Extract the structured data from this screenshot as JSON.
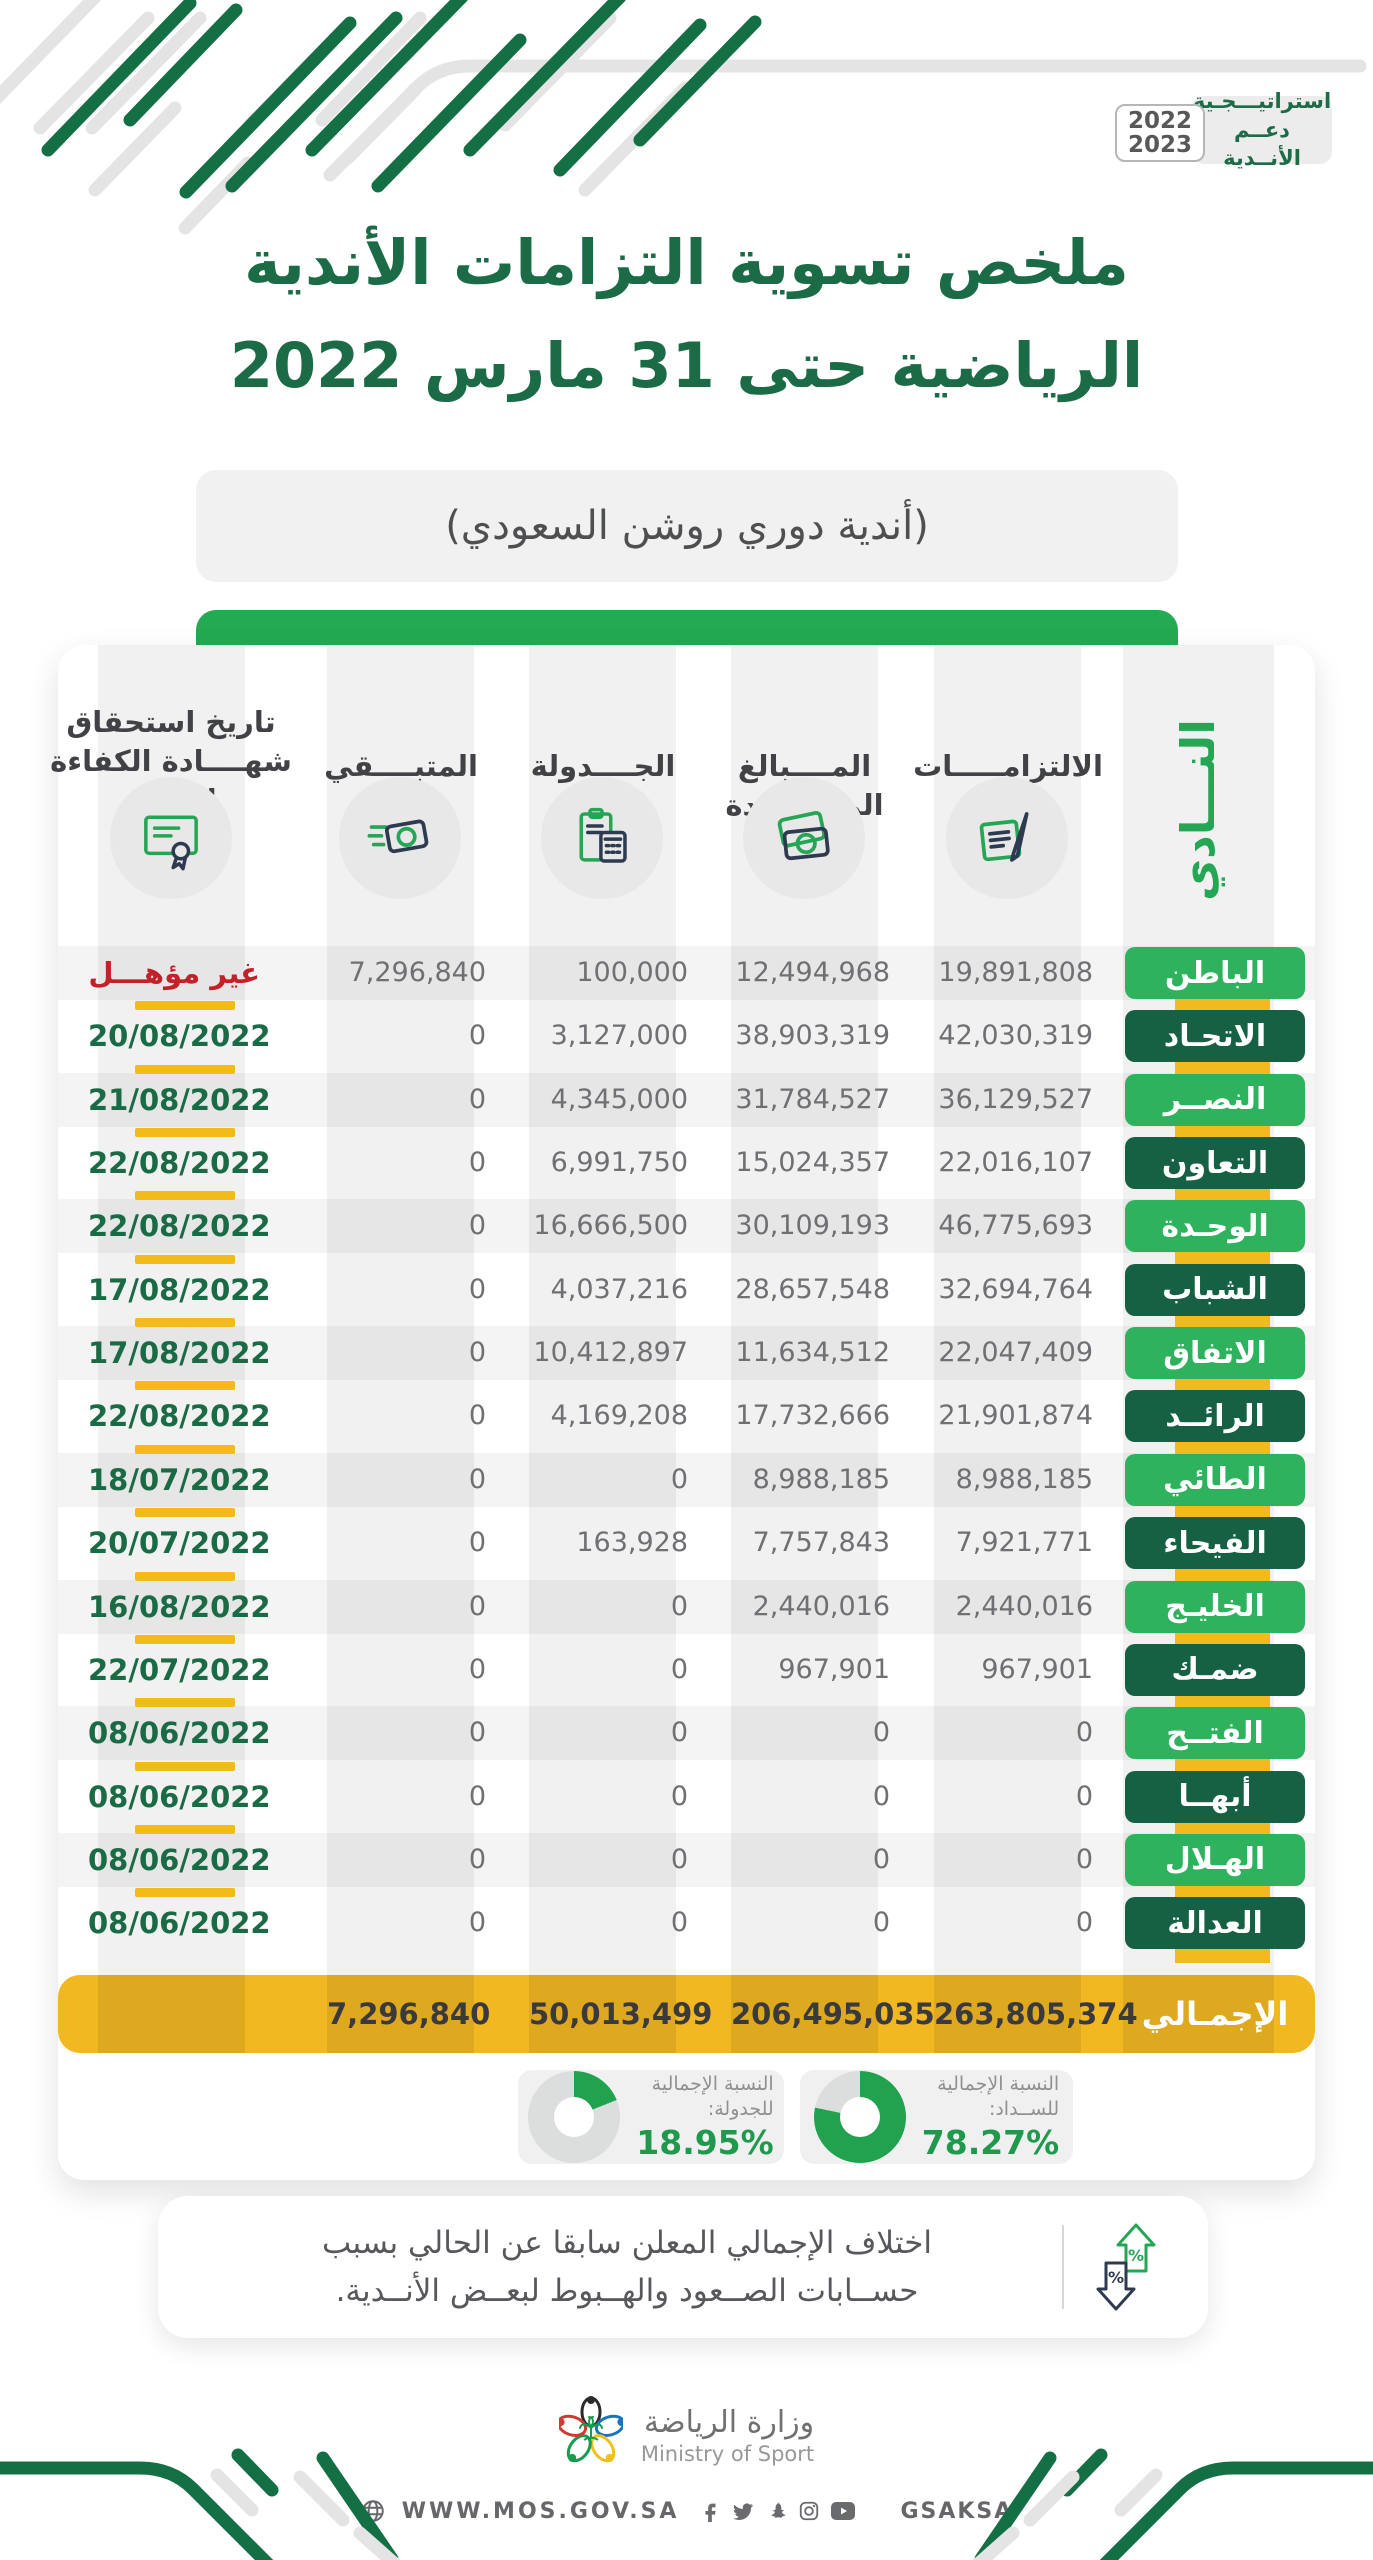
{
  "strategy_badge": {
    "label": "استراتيـــجـية دعــم الأنــدية",
    "year_top": "2022",
    "year_bottom": "2023"
  },
  "title": {
    "line1": "ملخص تسوية التزامات الأندية",
    "line2": "الرياضية حتى 31 مارس 2022"
  },
  "subtitle": "(أندية دوري روشن السعودي)",
  "table": {
    "club_header": "النـــادي",
    "columns": {
      "obligations": "الالتزامـــــات",
      "paid": "المــــبالغ المســــددة",
      "scheduled": "الجــــدولة",
      "remaining": "المتبــــقي",
      "cert": "تاريخ استحقاق شهــــادة الكفاءة المالية"
    },
    "rows": [
      {
        "club": "الباطن",
        "badge": "light",
        "obligations": "19,891,808",
        "paid": "12,494,968",
        "scheduled": "100,000",
        "remaining": "7,296,840",
        "cert": "غير مؤهـــل",
        "cert_type": "red"
      },
      {
        "club": "الاتحـاد",
        "badge": "dark",
        "obligations": "42,030,319",
        "paid": "38,903,319",
        "scheduled": "3,127,000",
        "remaining": "0",
        "cert": "20/08/2022",
        "cert_type": "date"
      },
      {
        "club": "النصــر",
        "badge": "light",
        "obligations": "36,129,527",
        "paid": "31,784,527",
        "scheduled": "4,345,000",
        "remaining": "0",
        "cert": "21/08/2022",
        "cert_type": "date"
      },
      {
        "club": "التعاون",
        "badge": "dark",
        "obligations": "22,016,107",
        "paid": "15,024,357",
        "scheduled": "6,991,750",
        "remaining": "0",
        "cert": "22/08/2022",
        "cert_type": "date"
      },
      {
        "club": "الوحـدة",
        "badge": "light",
        "obligations": "46,775,693",
        "paid": "30,109,193",
        "scheduled": "16,666,500",
        "remaining": "0",
        "cert": "22/08/2022",
        "cert_type": "date"
      },
      {
        "club": "الشباب",
        "badge": "dark",
        "obligations": "32,694,764",
        "paid": "28,657,548",
        "scheduled": "4,037,216",
        "remaining": "0",
        "cert": "17/08/2022",
        "cert_type": "date"
      },
      {
        "club": "الاتفاق",
        "badge": "light",
        "obligations": "22,047,409",
        "paid": "11,634,512",
        "scheduled": "10,412,897",
        "remaining": "0",
        "cert": "17/08/2022",
        "cert_type": "date"
      },
      {
        "club": "الرائــد",
        "badge": "dark",
        "obligations": "21,901,874",
        "paid": "17,732,666",
        "scheduled": "4,169,208",
        "remaining": "0",
        "cert": "22/08/2022",
        "cert_type": "date"
      },
      {
        "club": "الطائي",
        "badge": "light",
        "obligations": "8,988,185",
        "paid": "8,988,185",
        "scheduled": "0",
        "remaining": "0",
        "cert": "18/07/2022",
        "cert_type": "date"
      },
      {
        "club": "الفيحاء",
        "badge": "dark",
        "obligations": "7,921,771",
        "paid": "7,757,843",
        "scheduled": "163,928",
        "remaining": "0",
        "cert": "20/07/2022",
        "cert_type": "date"
      },
      {
        "club": "الخليـج",
        "badge": "light",
        "obligations": "2,440,016",
        "paid": "2,440,016",
        "scheduled": "0",
        "remaining": "0",
        "cert": "16/08/2022",
        "cert_type": "date"
      },
      {
        "club": "ضمـك",
        "badge": "dark",
        "obligations": "967,901",
        "paid": "967,901",
        "scheduled": "0",
        "remaining": "0",
        "cert": "22/07/2022",
        "cert_type": "date"
      },
      {
        "club": "الفتــح",
        "badge": "light",
        "obligations": "0",
        "paid": "0",
        "scheduled": "0",
        "remaining": "0",
        "cert": "08/06/2022",
        "cert_type": "date"
      },
      {
        "club": "أبهــا",
        "badge": "dark",
        "obligations": "0",
        "paid": "0",
        "scheduled": "0",
        "remaining": "0",
        "cert": "08/06/2022",
        "cert_type": "date"
      },
      {
        "club": "الهـلال",
        "badge": "light",
        "obligations": "0",
        "paid": "0",
        "scheduled": "0",
        "remaining": "0",
        "cert": "08/06/2022",
        "cert_type": "date"
      },
      {
        "club": "العدالة",
        "badge": "dark",
        "obligations": "0",
        "paid": "0",
        "scheduled": "0",
        "remaining": "0",
        "cert": "08/06/2022",
        "cert_type": "date"
      }
    ],
    "totals": {
      "label": "الإجمـالي",
      "obligations": "263,805,374",
      "paid": "206,495,035",
      "scheduled": "50,013,499",
      "remaining": "7,296,840"
    }
  },
  "stats": [
    {
      "label1": "النسبة الإجمالية",
      "label2": "للســداد:",
      "value": "78.27%",
      "pct": 78.27
    },
    {
      "label1": "النسبة الإجمالية",
      "label2": "للجدولة:",
      "value": "18.95%",
      "pct": 18.95
    }
  ],
  "note": {
    "line1": "اختلاف الإجمالي المعلن سابقا عن الحالي بسبب",
    "line2": "حســابات الصــعود والهــبوط لبعــض الأنــدية."
  },
  "footer": {
    "ministry_ar": "وزارة الرياضة",
    "ministry_en": "Ministry of Sport",
    "website": "WWW.MOS.GOV.SA",
    "social_handle": "GSAKSA"
  },
  "colors": {
    "green_dark": "#1b6b47",
    "green_bright": "#23aa52",
    "green_donut": "#21a24e",
    "yellow": "#f1bb1d",
    "red": "#c32127"
  }
}
